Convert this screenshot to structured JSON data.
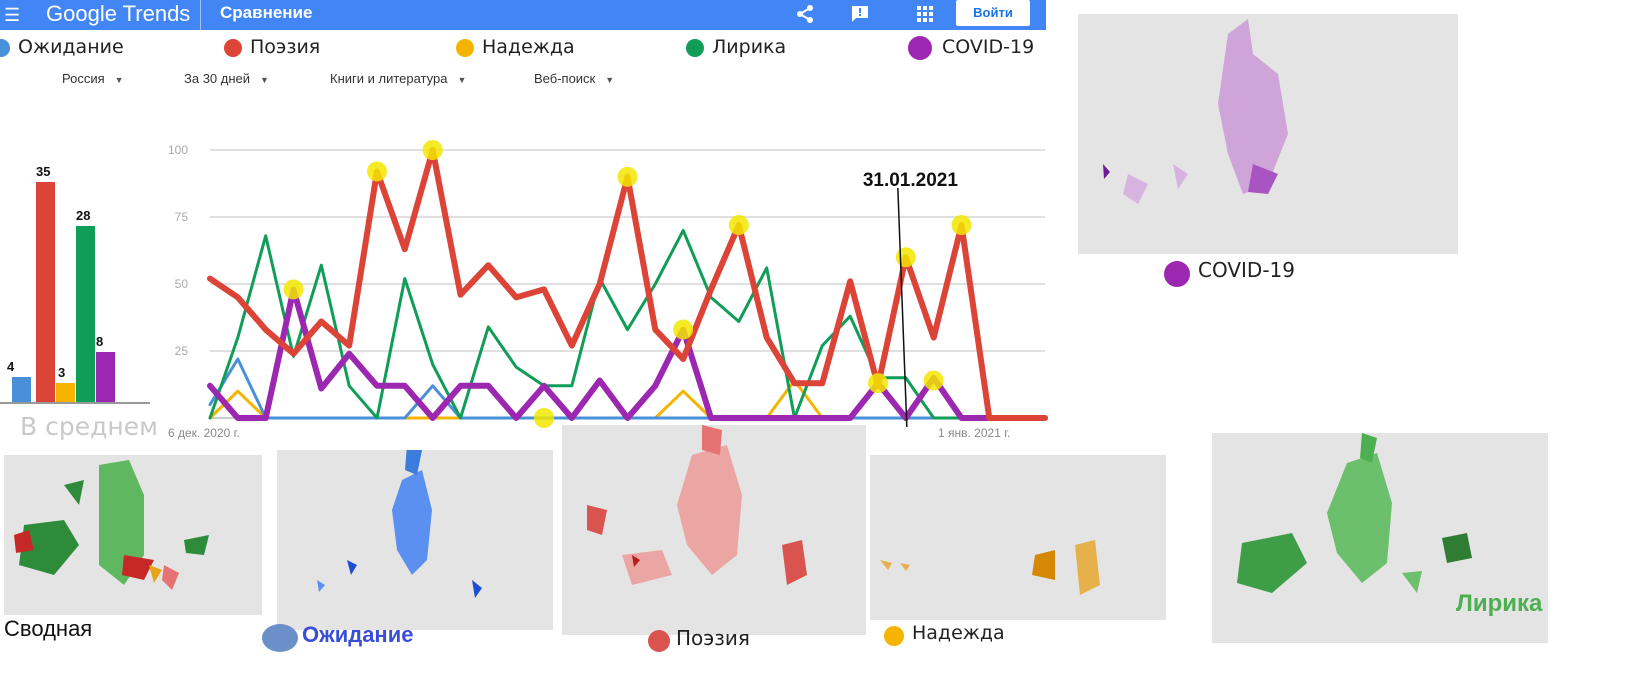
{
  "header": {
    "logo": "Google Trends",
    "section": "Сравнение",
    "login_label": "Войти",
    "icons": [
      "menu-icon",
      "share-icon",
      "feedback-icon",
      "apps-icon"
    ]
  },
  "legend": [
    {
      "name": "Ожидание",
      "color": "#4a90d9"
    },
    {
      "name": "Поэзия",
      "color": "#db4437"
    },
    {
      "name": "Надежда",
      "color": "#f4b400"
    },
    {
      "name": "Лирика",
      "color": "#0f9d58"
    },
    {
      "name": "COVID-19",
      "color": "#9c27b0"
    }
  ],
  "filters": {
    "region": "Россия",
    "period": "За 30 дней",
    "category": "Книги и литература",
    "search_type": "Веб-поиск"
  },
  "average": {
    "label": "В среднем",
    "values": [
      4,
      35,
      3,
      28,
      8
    ]
  },
  "chart_data": {
    "type": "line",
    "y_ticks": [
      25,
      50,
      75,
      100
    ],
    "ylim": [
      0,
      100
    ],
    "x_tick_labels": [
      "6 дек. 2020 г.",
      "1 янв. 2021 г."
    ],
    "annotation": "31.01.2021",
    "grid": true,
    "series": [
      {
        "name": "Ожидание",
        "color": "#4a90d9",
        "values": [
          5,
          22,
          0,
          0,
          0,
          0,
          0,
          0,
          12,
          0,
          0,
          0,
          0,
          0,
          0,
          0,
          0,
          0,
          0,
          0,
          0,
          0,
          0,
          0,
          0,
          0,
          0,
          0,
          0,
          0,
          0
        ]
      },
      {
        "name": "Поэзия",
        "color": "#db4437",
        "values": [
          52,
          45,
          33,
          24,
          36,
          27,
          92,
          63,
          100,
          46,
          57,
          45,
          48,
          27,
          50,
          90,
          33,
          22,
          48,
          72,
          30,
          13,
          13,
          51,
          12,
          60,
          30,
          72,
          0,
          0,
          0
        ]
      },
      {
        "name": "Надежда",
        "color": "#f4b400",
        "values": [
          0,
          10,
          0,
          0,
          0,
          0,
          0,
          0,
          0,
          0,
          0,
          0,
          0,
          0,
          0,
          0,
          0,
          10,
          0,
          0,
          0,
          14,
          0,
          0,
          13,
          0,
          14,
          0,
          0,
          0,
          0
        ]
      },
      {
        "name": "Лирика",
        "color": "#0f9d58",
        "values": [
          0,
          30,
          68,
          23,
          57,
          12,
          0,
          52,
          20,
          0,
          34,
          19,
          12,
          12,
          52,
          33,
          50,
          70,
          45,
          36,
          56,
          0,
          27,
          38,
          15,
          15,
          0,
          0,
          0,
          0,
          0
        ]
      },
      {
        "name": "COVID-19",
        "color": "#9c27b0",
        "values": [
          12,
          0,
          0,
          48,
          11,
          24,
          12,
          12,
          0,
          12,
          12,
          0,
          12,
          0,
          14,
          0,
          12,
          33,
          0,
          0,
          0,
          0,
          0,
          0,
          13,
          0,
          15,
          0,
          0,
          0,
          0
        ]
      }
    ]
  },
  "maps": {
    "covid_caption": "COVID-19",
    "summary_caption": "Сводная",
    "expect_caption": "Ожидание",
    "poetry_caption": "Поэзия",
    "hope_caption": "Надежда",
    "lyric_caption": "Лирика"
  }
}
